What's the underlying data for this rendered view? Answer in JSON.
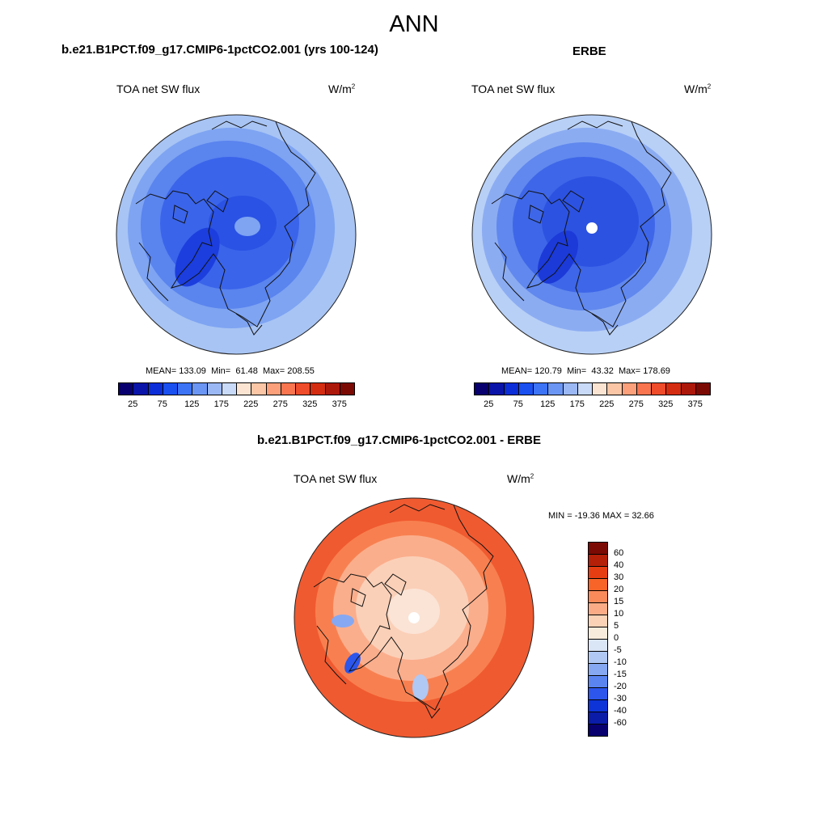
{
  "season": "ANN",
  "panels": [
    {
      "title": "b.e21.B1PCT.f09_g17.CMIP6-1pctCO2.001 (yrs 100-124)",
      "variable": "TOA net SW flux",
      "units_base": "W/m",
      "units_exp": "2",
      "stats": {
        "mean_label": "MEAN=",
        "mean": "133.09",
        "min_label": "Min=",
        "min": "61.48",
        "max_label": "Max=",
        "max": "208.55"
      }
    },
    {
      "title": "ERBE",
      "variable": "TOA net SW flux",
      "units_base": "W/m",
      "units_exp": "2",
      "stats": {
        "mean_label": "MEAN=",
        "mean": "120.79",
        "min_label": "Min=",
        "min": "43.32",
        "max_label": "Max=",
        "max": "178.69"
      }
    }
  ],
  "diff_panel": {
    "title": "b.e21.B1PCT.f09_g17.CMIP6-1pctCO2.001 - ERBE",
    "variable": "TOA net SW flux",
    "units_base": "W/m",
    "units_exp": "2",
    "minmax_text": "MIN = -19.36 MAX =  32.66"
  },
  "colorbar_main": {
    "colors": [
      "#08006e",
      "#0a14a8",
      "#0c2ed8",
      "#1a50f0",
      "#3c74f5",
      "#6c96f4",
      "#9cb8f4",
      "#c8daf7",
      "#fbe4d2",
      "#fbc6a6",
      "#fba07a",
      "#f87550",
      "#ee4c2a",
      "#d42c10",
      "#ac180a",
      "#7c0a04"
    ],
    "tick_labels": [
      "25",
      "75",
      "125",
      "175",
      "225",
      "275",
      "325",
      "375"
    ]
  },
  "colorbar_diff": {
    "colors": [
      "#7c0a04",
      "#b42008",
      "#e63e12",
      "#f86428",
      "#fa8a5a",
      "#fbac86",
      "#fbd2b6",
      "#f8ecdc",
      "#dae6f6",
      "#b0c8f4",
      "#86a8f2",
      "#5a84f0",
      "#2c56ec",
      "#0e34d8",
      "#0a1ca8",
      "#08006e"
    ],
    "tick_labels": [
      "60",
      "40",
      "30",
      "20",
      "15",
      "10",
      "5",
      "0",
      "-5",
      "-10",
      "-15",
      "-20",
      "-30",
      "-40",
      "-60"
    ]
  },
  "map_fills": {
    "main_a": [
      "#a8c4f4",
      "#7ea4f2",
      "#5a84ee",
      "#3a64ea",
      "#2a52e4",
      "#1c3ede"
    ],
    "main_b": [
      "#b8d0f6",
      "#8cacf2",
      "#6088ee",
      "#3e66e8",
      "#2c52e2",
      "#1c3ad8"
    ],
    "diff": [
      "#f05a30",
      "#f88050",
      "#fbae8c",
      "#fbd0b8",
      "#fbe4d6",
      "#ffffff"
    ]
  }
}
